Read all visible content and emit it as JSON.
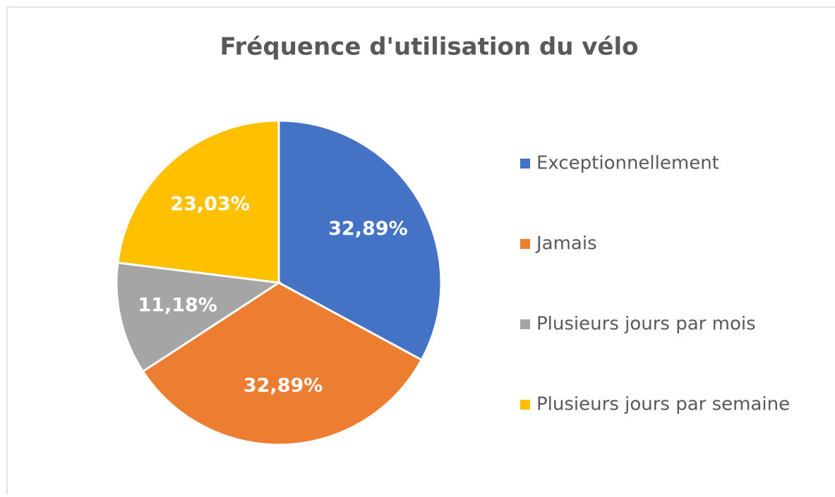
{
  "chart_data": {
    "type": "pie",
    "title": "Fréquence d'utilisation du vélo",
    "categories": [
      "Exceptionnellement",
      "Jamais",
      "Plusieurs jours par mois",
      "Plusieurs jours par semaine"
    ],
    "values": [
      32.89,
      32.89,
      11.18,
      23.03
    ],
    "value_labels": [
      "32,89%",
      "32,89%",
      "11,18%",
      "23,03%"
    ],
    "colors": [
      "#4472c4",
      "#ed7d31",
      "#a5a5a5",
      "#ffc000"
    ],
    "legend": "right"
  }
}
